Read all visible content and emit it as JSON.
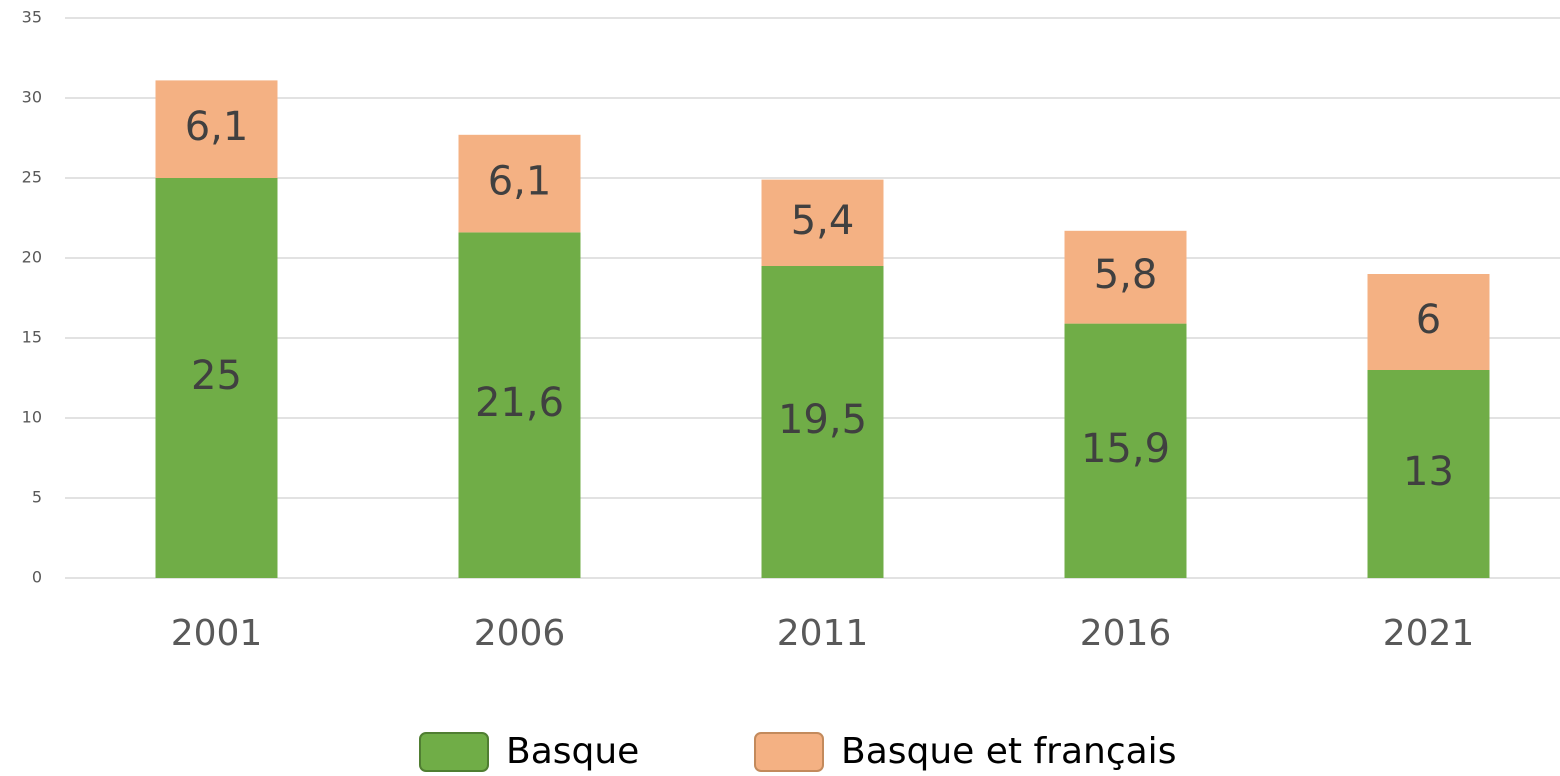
{
  "chart_data": {
    "type": "stacked_bar",
    "categories": [
      "2001",
      "2006",
      "2011",
      "2016",
      "2021"
    ],
    "series": [
      {
        "name": "Basque",
        "color": "#70ad47",
        "values": [
          25,
          21.6,
          19.5,
          15.9,
          13
        ],
        "value_labels": [
          "25",
          "21,6",
          "19,5",
          "15,9",
          "13"
        ]
      },
      {
        "name": "Basque et français",
        "color": "#f4b183",
        "values": [
          6.1,
          6.1,
          5.4,
          5.8,
          6
        ],
        "value_labels": [
          "6,1",
          "6,1",
          "5,4",
          "5,8",
          "6"
        ]
      }
    ],
    "ylim": [
      0,
      35
    ],
    "yticks": [
      0,
      5,
      10,
      15,
      20,
      25,
      30,
      35
    ],
    "grid": true,
    "legend": "bottom"
  }
}
